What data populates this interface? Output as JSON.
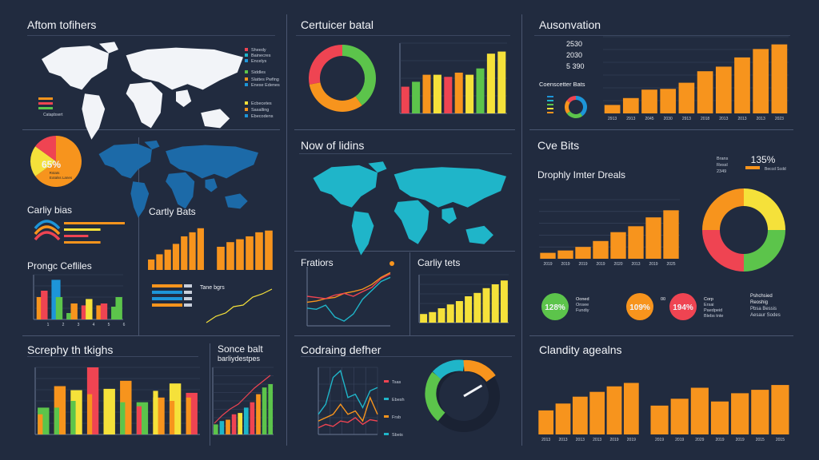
{
  "colors": {
    "bg": "#212b3f",
    "grid": "#3b4760",
    "axis": "#6b7894",
    "orange": "#f7941d",
    "yellow": "#f5e13a",
    "green": "#5cc44b",
    "red": "#ef4452",
    "teal": "#1fb5c9",
    "blue": "#1d95d8",
    "white": "#f2f4f8"
  },
  "titles": {
    "p1": "Aftom tofihers",
    "p2": "Certuicer batal",
    "p3": "Ausonvation",
    "p4": "Carliy bias",
    "p5": "Cartly Bats",
    "p6": "Prongc Cefliles",
    "p7": "Now of lidins",
    "p8": "Cve Bits",
    "p9": "Drophly Imter Dreals",
    "p10": "Fratiors",
    "p11": "Carliy tets",
    "p12": "Screphy th tkighs",
    "p13": "Sonce balt",
    "p13sub": "barliydestpes",
    "p14": "Codraing defher",
    "p15": "Clandity agealns"
  },
  "labels": {
    "worldLegend": [
      "Sheedy",
      "Bainecres",
      "Encelys",
      "Siddles",
      "Slattes Pwfing",
      "Enese Edenes",
      "Ecbecetes",
      "Sasalling",
      "Ebecodens",
      "Catapbsert"
    ],
    "p1pie": "65%",
    "p1pieSub": [
      "Rstats",
      "Eotalss Lanes"
    ],
    "p3stats": [
      "2530",
      "2030",
      "5 390"
    ],
    "p3sub": "Coenscetter Bats",
    "p3years": [
      "2913",
      "2913",
      "2045",
      "2030",
      "2913",
      "2018",
      "2013",
      "2013",
      "2013",
      "2023"
    ],
    "p8big": "135%",
    "p8legend": [
      "Brans",
      "Ressl",
      "2349"
    ],
    "p8legend2": "Beccd Scdd",
    "p9years": [
      "2019",
      "2019",
      "2019",
      "2019",
      "2020",
      "2013",
      "2019",
      "2025"
    ],
    "stats": [
      {
        "value": "128%",
        "lines": [
          "Ooned",
          "Onsee",
          "Fundiy"
        ]
      },
      {
        "value": "109%",
        "lines": [
          "00"
        ]
      },
      {
        "value": "194%",
        "lines": [
          "Corp",
          "Ersai",
          "Paedpeid",
          "Blebs tnte"
        ]
      }
    ],
    "statsText": [
      "Pshchsied",
      "Reoshig",
      "Pbsa Bessis",
      "Aesaur Sodes"
    ],
    "tlegend": "Tane bgrs",
    "p14legend": [
      "Tsas",
      "Ebesh",
      "Frsb",
      "Sbeis"
    ],
    "p15years": [
      "2013",
      "2013",
      "2013",
      "2013",
      "2019",
      "2019",
      "2019",
      "2019",
      "2029",
      "2019",
      "2019",
      "2015",
      "2015"
    ]
  },
  "chart_data": [
    {
      "type": "map",
      "id": "p1map",
      "regions": "world",
      "legend": [
        "Sheedy",
        "Bainecres",
        "Encelys",
        "Siddles",
        "Slattes Pwfing",
        "Enese Edenes",
        "Ecbecetes",
        "Sasalling",
        "Ebecodens",
        "Catapbsert"
      ]
    },
    {
      "type": "pie",
      "id": "p1pie",
      "values": [
        65,
        20,
        15
      ],
      "colors": [
        "#f7941d",
        "#f5e13a",
        "#ef4452"
      ]
    },
    {
      "type": "pie",
      "id": "p2donut",
      "values": [
        40,
        32,
        28
      ],
      "colors": [
        "#5cc44b",
        "#f7941d",
        "#ef4452"
      ]
    },
    {
      "type": "bar",
      "id": "p2bar",
      "values": [
        38,
        45,
        55,
        55,
        52,
        58,
        55,
        64,
        85,
        88
      ],
      "colors": [
        "#ef4452",
        "#5cc44b",
        "#f7941d",
        "#f5e13a",
        "#ef4452",
        "#f7941d",
        "#f5e13a",
        "#5cc44b",
        "#f5e13a",
        "#f5e13a"
      ],
      "ylim": [
        0,
        100
      ]
    },
    {
      "type": "bar",
      "id": "p3bar",
      "categories": [
        "2913",
        "2913",
        "2045",
        "2030",
        "2913",
        "2018",
        "2013",
        "2013",
        "2013",
        "2023"
      ],
      "values": [
        11,
        20,
        31,
        32,
        40,
        55,
        61,
        73,
        84,
        90
      ],
      "color": "#f7941d",
      "ylim": [
        0,
        100
      ]
    },
    {
      "type": "pie",
      "id": "p3donut",
      "values": [
        40,
        25,
        20,
        15
      ],
      "colors": [
        "#1d95d8",
        "#5cc44b",
        "#f7941d",
        "#ef4452"
      ]
    },
    {
      "type": "bar",
      "id": "p4hbar",
      "values": [
        100,
        60,
        40,
        60
      ],
      "colors": [
        "#f7941d",
        "#f5e13a",
        "#ef4452",
        "#f7941d"
      ],
      "xlim": [
        0,
        100
      ]
    },
    {
      "type": "bar",
      "id": "p5barA",
      "values": [
        18,
        27,
        35,
        45,
        58,
        65,
        72
      ],
      "color": "#f7941d",
      "ylim": [
        0,
        80
      ]
    },
    {
      "type": "bar",
      "id": "p5barB",
      "values": [
        40,
        48,
        53,
        58,
        65,
        68
      ],
      "color": "#f7941d",
      "ylim": [
        0,
        80
      ]
    },
    {
      "type": "bar",
      "id": "p6bar",
      "categories": [
        "1",
        "2",
        "3",
        "4",
        "5",
        "6"
      ],
      "series": [
        {
          "values": [
            35,
            62,
            10,
            22,
            22,
            20
          ]
        },
        {
          "values": [
            45,
            35,
            25,
            32,
            25,
            35
          ]
        }
      ],
      "colors": [
        "#f7941d",
        "#1d95d8",
        "#5cc44b",
        "#ef4452",
        "#f7941d",
        "#5cc44b"
      ],
      "ylim": [
        0,
        70
      ]
    },
    {
      "type": "map",
      "id": "p7map",
      "regions": "world"
    },
    {
      "type": "bar",
      "id": "p8bar",
      "categories": [
        "2019",
        "2019",
        "2019",
        "2019",
        "2020",
        "2013",
        "2019",
        "2025"
      ],
      "values": [
        10,
        14,
        20,
        30,
        45,
        55,
        70,
        82
      ],
      "color": "#f7941d",
      "ylim": [
        0,
        100
      ]
    },
    {
      "type": "pie",
      "id": "p9donut",
      "values": [
        25,
        25,
        25,
        25
      ],
      "colors": [
        "#f5e13a",
        "#5cc44b",
        "#ef4452",
        "#f7941d"
      ]
    },
    {
      "type": "line",
      "id": "p10line",
      "series": [
        {
          "color": "#f7941d",
          "values": [
            40,
            42,
            46,
            48,
            55,
            58,
            62,
            70,
            82,
            90
          ]
        },
        {
          "color": "#1fb5c9",
          "values": [
            30,
            28,
            35,
            15,
            8,
            20,
            45,
            60,
            75,
            82
          ]
        },
        {
          "color": "#ef4452",
          "values": [
            50,
            48,
            46,
            52,
            55,
            50,
            58,
            65,
            80,
            88
          ]
        }
      ],
      "ylim": [
        0,
        100
      ]
    },
    {
      "type": "bar",
      "id": "p11bar",
      "values": [
        18,
        22,
        30,
        38,
        45,
        55,
        62,
        72,
        80,
        88
      ],
      "color": "#f5e13a",
      "ylim": [
        0,
        100
      ]
    },
    {
      "type": "bar",
      "id": "p12bar",
      "series": [
        {
          "values": [
            40,
            72,
            66,
            100,
            68,
            80,
            48,
            55,
            76,
            62
          ]
        },
        {
          "values": [
            30,
            40,
            50,
            60,
            38,
            48,
            42,
            65,
            50,
            55
          ]
        }
      ],
      "colors": [
        "#5cc44b",
        "#f7941d",
        "#f5e13a",
        "#ef4452",
        "#f5e13a",
        "#f7941d",
        "#5cc44b",
        "#f7941d",
        "#f5e13a",
        "#ef4452"
      ],
      "ylim": [
        0,
        100
      ]
    },
    {
      "type": "bar",
      "id": "p13bar",
      "values": [
        15,
        20,
        22,
        30,
        32,
        40,
        48,
        60,
        70,
        75
      ],
      "colors": [
        "#5cc44b",
        "#1fb5c9",
        "#f7941d",
        "#ef4452",
        "#f5e13a",
        "#1fb5c9",
        "#ef4452",
        "#f7941d",
        "#5cc44b",
        "#5cc44b"
      ],
      "ylim": [
        0,
        100
      ]
    },
    {
      "type": "line",
      "id": "p14line",
      "series": [
        {
          "color": "#1fb5c9",
          "values": [
            30,
            45,
            85,
            95,
            55,
            60,
            40,
            65,
            70
          ]
        },
        {
          "color": "#f7941d",
          "values": [
            20,
            25,
            30,
            45,
            30,
            35,
            20,
            55,
            30
          ]
        },
        {
          "color": "#ef4452",
          "values": [
            10,
            15,
            12,
            20,
            18,
            25,
            15,
            22,
            20
          ]
        }
      ],
      "ylim": [
        0,
        100
      ]
    },
    {
      "type": "gauge",
      "id": "p14gauge",
      "value": 72
    },
    {
      "type": "bar",
      "id": "p15barA",
      "categories": [
        "2013",
        "2013",
        "2013",
        "2013",
        "2019",
        "2019"
      ],
      "values": [
        35,
        45,
        55,
        62,
        70,
        75
      ],
      "color": "#f7941d",
      "ylim": [
        0,
        100
      ]
    },
    {
      "type": "bar",
      "id": "p15barB",
      "categories": [
        "2019",
        "2019",
        "2029",
        "2019",
        "2019",
        "2015",
        "2015"
      ],
      "values": [
        42,
        52,
        68,
        48,
        60,
        65,
        72
      ],
      "color": "#f7941d",
      "ylim": [
        0,
        100
      ]
    }
  ]
}
